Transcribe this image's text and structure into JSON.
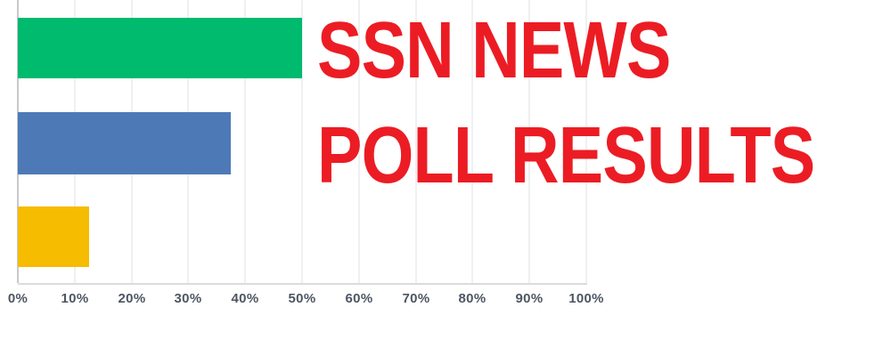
{
  "title": {
    "line1": "SSN NEWS",
    "line2": "POLL RESULTS",
    "color": "#ec1c24"
  },
  "chart_data": {
    "type": "bar",
    "orientation": "horizontal",
    "title": "SSN NEWS POLL RESULTS",
    "categories": [
      "green-bar",
      "blue-bar",
      "yellow-bar"
    ],
    "values": [
      50,
      37.5,
      12.5
    ],
    "bar_colors": [
      "#00ba6e",
      "#4d7ab7",
      "#f6bc00"
    ],
    "x_ticks": [
      "0%",
      "10%",
      "20%",
      "30%",
      "40%",
      "50%",
      "60%",
      "70%",
      "80%",
      "90%",
      "100%"
    ],
    "xlabel": "",
    "ylabel": "",
    "xlim": [
      0,
      100
    ],
    "grid": true,
    "legend": "none",
    "axis_label_color": "#4e5663",
    "gridline_color": "#eff0f2",
    "baseline_color": "#c6c9ce"
  }
}
